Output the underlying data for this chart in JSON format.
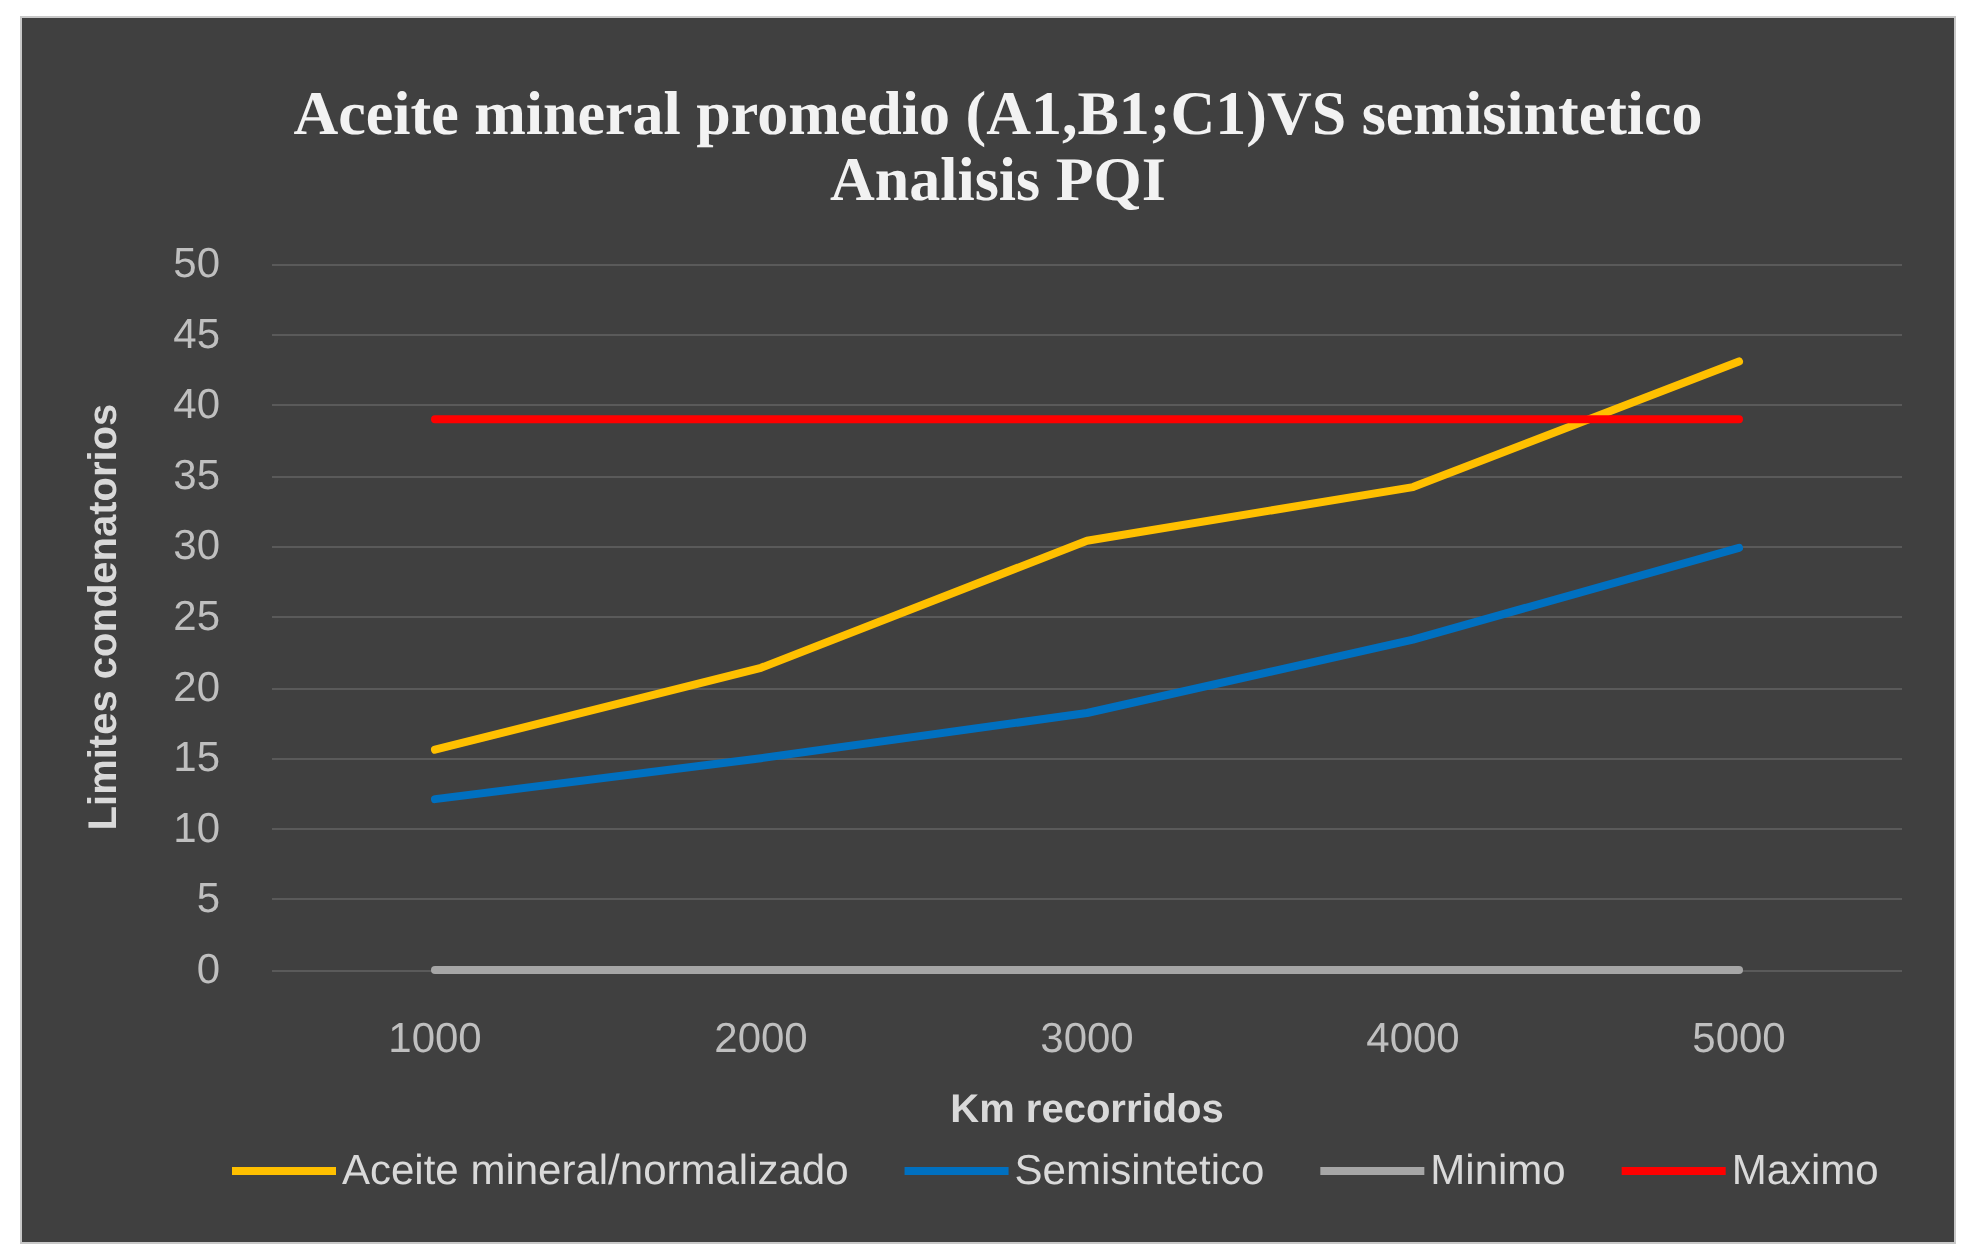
{
  "chart_data": {
    "type": "line",
    "title": "Aceite mineral promedio (A1,B1;C1)VS semisintetico\nAnalisis PQI",
    "xlabel": "Km recorridos",
    "ylabel": "Limites condenatorios",
    "categories": [
      "1000",
      "2000",
      "3000",
      "4000",
      "5000"
    ],
    "series": [
      {
        "name": "Aceite mineral/normalizado",
        "color": "#ffc000",
        "values": [
          15.6,
          21.4,
          30.4,
          34.2,
          43.1
        ]
      },
      {
        "name": "Semisintetico",
        "color": "#0070c0",
        "values": [
          12.1,
          15.0,
          18.2,
          23.4,
          29.9
        ]
      },
      {
        "name": "Minimo",
        "color": "#a6a6a6",
        "values": [
          0,
          0,
          0,
          0,
          0
        ]
      },
      {
        "name": "Maximo",
        "color": "#ff0000",
        "values": [
          39,
          39,
          39,
          39,
          39
        ]
      }
    ],
    "ylim": [
      0,
      50
    ],
    "yticks": [
      0,
      5,
      10,
      15,
      20,
      25,
      30,
      35,
      40,
      45,
      50
    ],
    "grid": "y",
    "legend": "bottom",
    "marker": "none",
    "line_style": "solid"
  }
}
